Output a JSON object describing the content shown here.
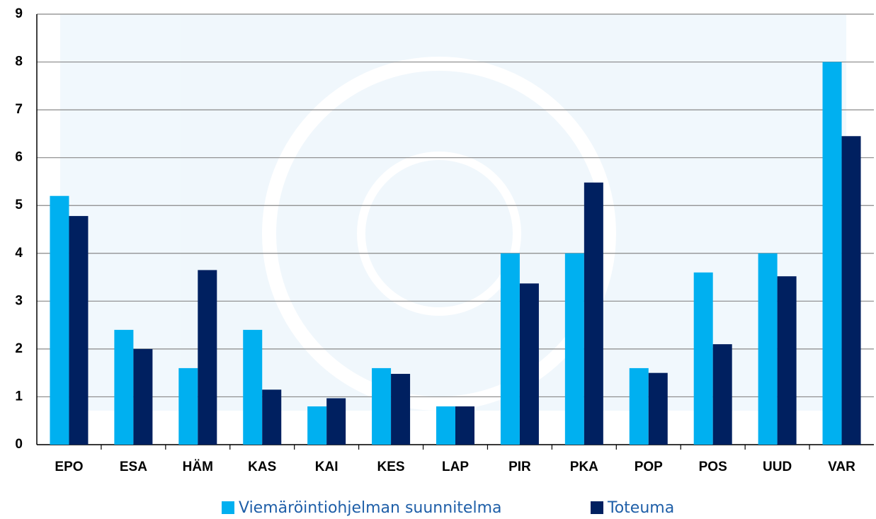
{
  "chart_data": {
    "type": "bar",
    "categories": [
      "EPO",
      "ESA",
      "HÄM",
      "KAS",
      "KAI",
      "KES",
      "LAP",
      "PIR",
      "PKA",
      "POP",
      "POS",
      "UUD",
      "VAR"
    ],
    "series": [
      {
        "name": "Viemäröintiohjelman suunnitelma",
        "color": "#00b0f0",
        "values": [
          5.2,
          2.4,
          1.6,
          2.4,
          0.8,
          1.6,
          0.8,
          4.0,
          4.0,
          1.6,
          3.6,
          4.0,
          8.0
        ]
      },
      {
        "name": "Toteuma",
        "color": "#002060",
        "values": [
          4.78,
          2.0,
          3.65,
          1.15,
          0.97,
          1.48,
          0.8,
          3.37,
          5.48,
          1.5,
          2.1,
          3.52,
          6.45
        ]
      }
    ],
    "ylim": [
      0,
      9
    ],
    "yticks": [
      0,
      1,
      2,
      3,
      4,
      5,
      6,
      7,
      8,
      9
    ],
    "grid": true,
    "legend": "bottom"
  }
}
